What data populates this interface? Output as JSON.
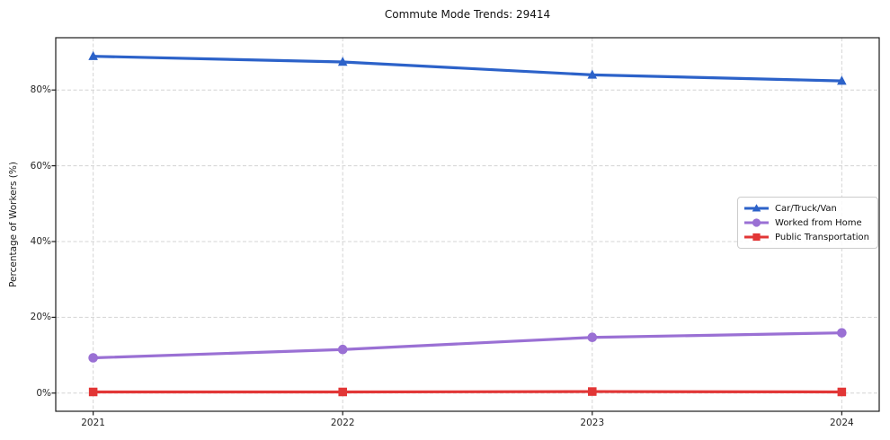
{
  "page": {
    "background": "#ffffff"
  },
  "chart_data": {
    "type": "line",
    "title": "Commute Mode Trends: 29414",
    "xlabel": "",
    "ylabel": "Percentage of Workers (%)",
    "x": [
      2021,
      2022,
      2023,
      2024
    ],
    "x_tick_labels": [
      "2021",
      "2022",
      "2023",
      "2024"
    ],
    "y_ticks": [
      0,
      20,
      40,
      60,
      80
    ],
    "y_tick_labels": [
      "0%",
      "20%",
      "40%",
      "60%",
      "80%"
    ],
    "xlim": [
      2020.85,
      2024.15
    ],
    "ylim": [
      -4.8,
      93.8
    ],
    "grid": true,
    "grid_style": "dashed",
    "legend_position": "center right",
    "series": [
      {
        "name": "Car/Truck/Van",
        "marker": "triangle",
        "color": "#2c62c9",
        "values": [
          88.9,
          87.4,
          84.0,
          82.4
        ]
      },
      {
        "name": "Worked from Home",
        "marker": "circle",
        "color": "#9a70d4",
        "values": [
          9.3,
          11.5,
          14.7,
          15.9
        ]
      },
      {
        "name": "Public Transportation",
        "marker": "square",
        "color": "#e23636",
        "values": [
          0.3,
          0.3,
          0.4,
          0.3
        ]
      }
    ]
  },
  "colors": {
    "gridline": "#d4d4d4",
    "spine": "#1c1c1c",
    "tick_label": "#262626",
    "legend_border": "#cccccc"
  }
}
